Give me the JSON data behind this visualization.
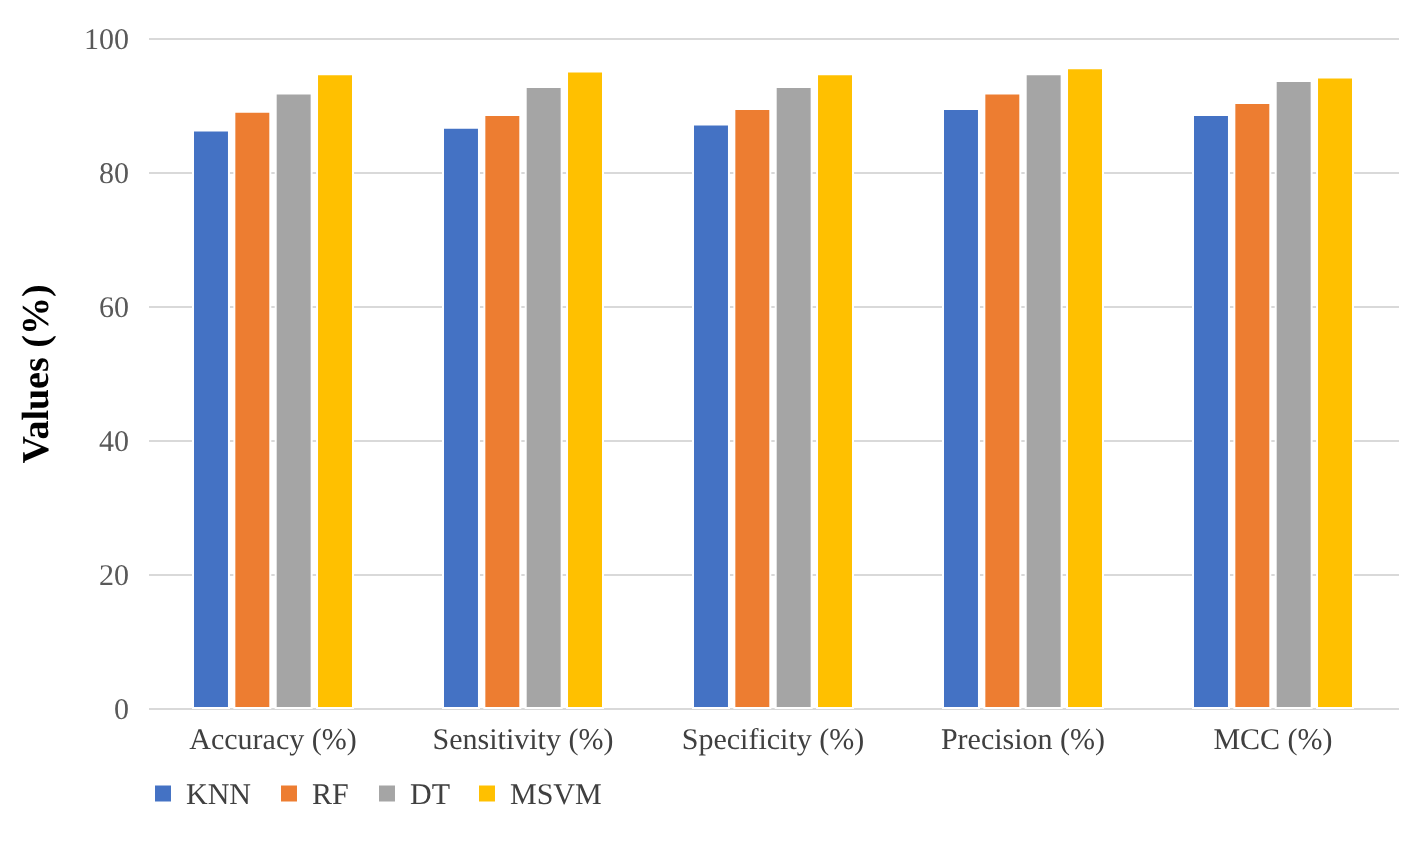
{
  "chart_data": {
    "type": "bar",
    "ylabel": "Values (%)",
    "categories": [
      "Accuracy (%)",
      "Sensitivity (%)",
      "Specificity (%)",
      "Precision (%)",
      "MCC (%)"
    ],
    "series": [
      {
        "name": "KNN",
        "color": "#4472c4",
        "values": [
          86.2,
          86.6,
          87.1,
          89.4,
          88.5
        ]
      },
      {
        "name": "RF",
        "color": "#ed7d31",
        "values": [
          89.0,
          88.5,
          89.4,
          91.7,
          90.3
        ]
      },
      {
        "name": "DT",
        "color": "#a5a5a5",
        "values": [
          91.7,
          92.7,
          92.7,
          94.6,
          93.6
        ]
      },
      {
        "name": "MSVM",
        "color": "#ffc000",
        "values": [
          94.6,
          95.0,
          94.6,
          95.5,
          94.1
        ]
      }
    ],
    "ylim": [
      0,
      100
    ],
    "yticks": [
      0,
      20,
      40,
      60,
      80,
      100
    ],
    "grid": "y",
    "legend": "bottom"
  }
}
